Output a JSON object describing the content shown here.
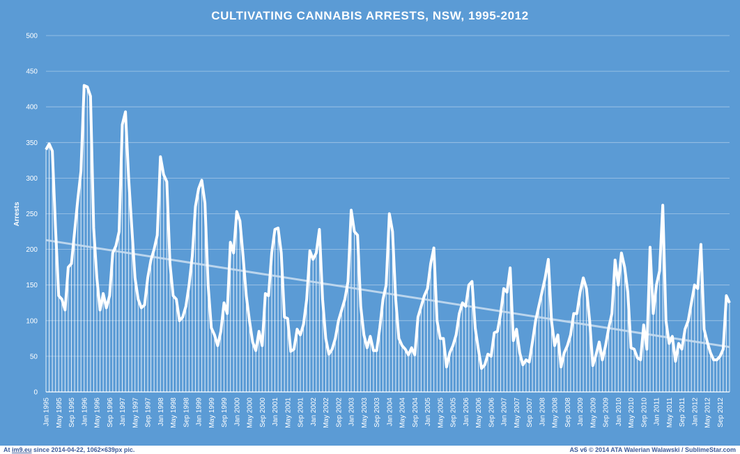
{
  "colors": {
    "background": "#5b9bd5",
    "text": "#ffffff",
    "series": "#ffffff",
    "trendline": "#c5dcf0",
    "footer_bg": "#ffffff",
    "footer_text": "#3b5b9b"
  },
  "footer": {
    "left_prefix": "At ",
    "left_site": "im9.eu",
    "left_rest": " since 2014-04-22, 1062×639px pic.",
    "right": "AS v6 © 2014 ATA Walerian Walawski / SublimeStar.com"
  },
  "chart_data": {
    "type": "area",
    "title": "CULTIVATING  CANNABIS  ARRESTS,  NSW,  1995-2012",
    "xlabel": "",
    "ylabel": "Arrests",
    "ylim": [
      0,
      500
    ],
    "yticks": [
      0,
      50,
      100,
      150,
      200,
      250,
      300,
      350,
      400,
      450,
      500
    ],
    "grid": true,
    "legend": "none",
    "x_start": "Jan 1995",
    "x_end": "Dec 2012",
    "x_tick_labels": [
      "Jan 1995",
      "May 1995",
      "Sep 1995",
      "Jan 1996",
      "May 1996",
      "Sep 1996",
      "Jan 1997",
      "May 1997",
      "Sep 1997",
      "Jan 1998",
      "May 1998",
      "Sep 1998",
      "Jan 1999",
      "May 1999",
      "Sep 1999",
      "Jan 2000",
      "May 2000",
      "Sep 2000",
      "Jan 2001",
      "May 2001",
      "Sep 2001",
      "Jan 2002",
      "May 2002",
      "Sep 2002",
      "Jan 2003",
      "May 2003",
      "Sep 2003",
      "Jan 2004",
      "May 2004",
      "Sep 2004",
      "Jan 2005",
      "May 2005",
      "Sep 2005",
      "Jan 2006",
      "May 2006",
      "Sep 2006",
      "Jan 2007",
      "May 2007",
      "Sep 2007",
      "Jan 2008",
      "May 2008",
      "Sep 2008",
      "Jan 2009",
      "May 2009",
      "Sep 2009",
      "Jan 2010",
      "May 2010",
      "Sep 2010",
      "Jan 2011",
      "May 2011",
      "Sep 2011",
      "Jan 2012",
      "May 2012",
      "Sep 2012"
    ],
    "series": [
      {
        "values": [
          340,
          348,
          338,
          230,
          135,
          130,
          115,
          175,
          180,
          225,
          270,
          310,
          430,
          428,
          415,
          230,
          160,
          115,
          138,
          118,
          135,
          195,
          205,
          225,
          375,
          393,
          300,
          230,
          160,
          130,
          118,
          122,
          160,
          185,
          200,
          220,
          330,
          305,
          295,
          180,
          135,
          130,
          100,
          105,
          120,
          150,
          190,
          260,
          285,
          297,
          265,
          150,
          90,
          80,
          65,
          85,
          125,
          110,
          210,
          195,
          253,
          240,
          190,
          135,
          100,
          70,
          58,
          85,
          65,
          138,
          135,
          195,
          228,
          230,
          195,
          105,
          103,
          57,
          60,
          88,
          80,
          95,
          130,
          198,
          186,
          195,
          228,
          130,
          75,
          53,
          60,
          75,
          100,
          115,
          130,
          155,
          255,
          225,
          220,
          120,
          80,
          62,
          78,
          58,
          58,
          90,
          130,
          150,
          250,
          225,
          130,
          75,
          65,
          60,
          52,
          62,
          52,
          105,
          120,
          135,
          145,
          180,
          202,
          100,
          75,
          75,
          35,
          55,
          65,
          80,
          110,
          125,
          120,
          150,
          155,
          90,
          60,
          33,
          38,
          53,
          50,
          83,
          85,
          110,
          145,
          140,
          174,
          72,
          88,
          55,
          38,
          45,
          42,
          70,
          100,
          120,
          140,
          160,
          186,
          100,
          65,
          80,
          35,
          55,
          65,
          80,
          110,
          110,
          140,
          160,
          145,
          100,
          37,
          52,
          70,
          45,
          65,
          90,
          110,
          185,
          150,
          195,
          175,
          140,
          62,
          60,
          48,
          45,
          94,
          60,
          203,
          110,
          150,
          170,
          262,
          100,
          68,
          78,
          43,
          68,
          60,
          88,
          100,
          125,
          150,
          145,
          207,
          88,
          70,
          55,
          45,
          45,
          50,
          60,
          135,
          125
        ]
      }
    ],
    "trendline": {
      "start": 213,
      "end": 63
    }
  }
}
